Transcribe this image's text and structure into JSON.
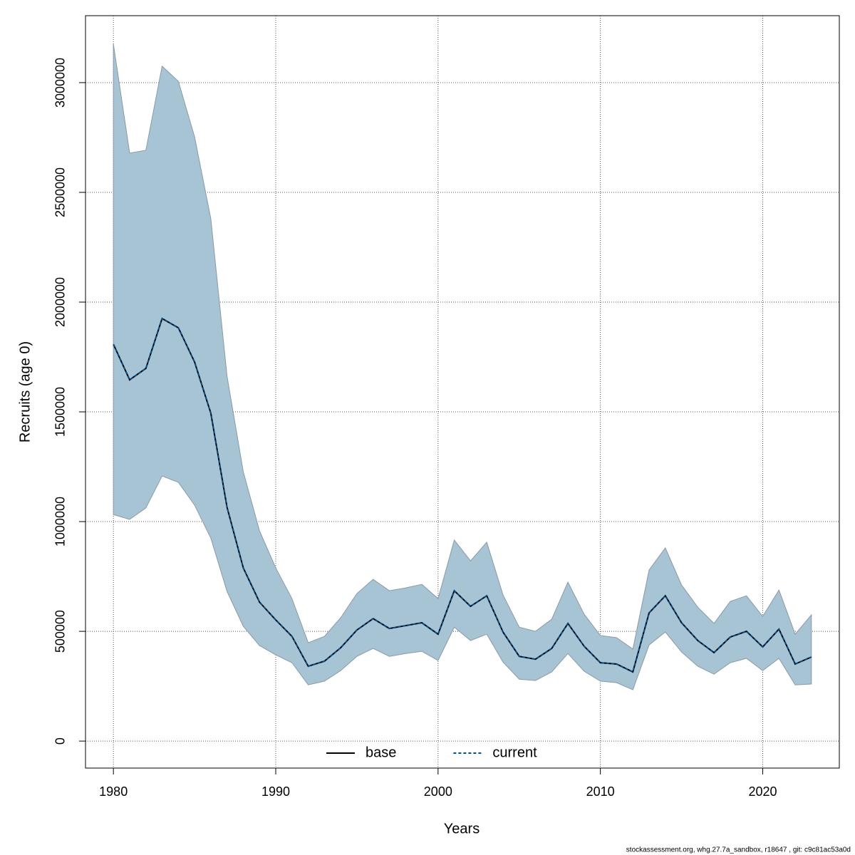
{
  "chart_data": {
    "type": "line",
    "x_label": "Years",
    "y_label": "Recruits (age 0)",
    "footer": "stockassessment.org, whg.27.7a_sandbox, r18647 , git: c9c81ac53a0d",
    "x": [
      1980,
      1981,
      1982,
      1983,
      1984,
      1985,
      1986,
      1987,
      1988,
      1989,
      1990,
      1991,
      1992,
      1993,
      1994,
      1995,
      1996,
      1997,
      1998,
      1999,
      2000,
      2001,
      2002,
      2003,
      2004,
      2005,
      2006,
      2007,
      2008,
      2009,
      2010,
      2011,
      2012,
      2013,
      2014,
      2015,
      2016,
      2017,
      2018,
      2019,
      2020,
      2021,
      2022,
      2023
    ],
    "band": {
      "color": "#a6c4d4",
      "edge": "#8a9aa5",
      "upper": [
        3175000,
        2679000,
        2692000,
        3075000,
        3006000,
        2753000,
        2380000,
        1662000,
        1227000,
        958000,
        789000,
        649000,
        448000,
        477000,
        562000,
        672000,
        737000,
        685000,
        698000,
        714000,
        649000,
        916000,
        821000,
        906000,
        666000,
        519000,
        500000,
        555000,
        724000,
        578000,
        481000,
        471000,
        419000,
        779000,
        880000,
        711000,
        610000,
        536000,
        636000,
        662000,
        568000,
        688000,
        487000,
        575000
      ],
      "lower": [
        1032000,
        1010000,
        1062000,
        1208000,
        1179000,
        1075000,
        925000,
        682000,
        523000,
        435000,
        393000,
        357000,
        256000,
        273000,
        321000,
        386000,
        422000,
        386000,
        399000,
        409000,
        367000,
        519000,
        458000,
        487000,
        360000,
        282000,
        276000,
        315000,
        399000,
        318000,
        273000,
        266000,
        234000,
        438000,
        497000,
        406000,
        341000,
        305000,
        357000,
        377000,
        321000,
        377000,
        256000,
        260000
      ]
    },
    "series": [
      {
        "name": "base",
        "color": "#000000",
        "dash": false,
        "values": [
          1808000,
          1646000,
          1698000,
          1925000,
          1883000,
          1727000,
          1494000,
          1065000,
          789000,
          633000,
          552000,
          477000,
          341000,
          364000,
          425000,
          506000,
          558000,
          513000,
          526000,
          539000,
          487000,
          685000,
          614000,
          662000,
          497000,
          386000,
          373000,
          422000,
          536000,
          432000,
          357000,
          351000,
          315000,
          584000,
          662000,
          539000,
          458000,
          403000,
          474000,
          500000,
          429000,
          510000,
          351000,
          383000
        ]
      },
      {
        "name": "current",
        "color": "#00508c",
        "dash": true,
        "values": [
          1808000,
          1646000,
          1698000,
          1925000,
          1883000,
          1727000,
          1494000,
          1065000,
          789000,
          633000,
          552000,
          477000,
          341000,
          364000,
          425000,
          506000,
          558000,
          513000,
          526000,
          539000,
          487000,
          685000,
          614000,
          662000,
          497000,
          386000,
          373000,
          422000,
          536000,
          432000,
          357000,
          351000,
          315000,
          584000,
          662000,
          539000,
          458000,
          403000,
          474000,
          500000,
          429000,
          510000,
          351000,
          383000
        ]
      }
    ],
    "xlim": [
      1978.28,
      2024.72
    ],
    "xticks": [
      1980,
      1990,
      2000,
      2010,
      2020
    ],
    "ylim": [
      -123000,
      3305000
    ],
    "yticks": [
      0,
      500000,
      1000000,
      1500000,
      2000000,
      2500000,
      3000000
    ],
    "grid": true,
    "legend": "bottom"
  }
}
